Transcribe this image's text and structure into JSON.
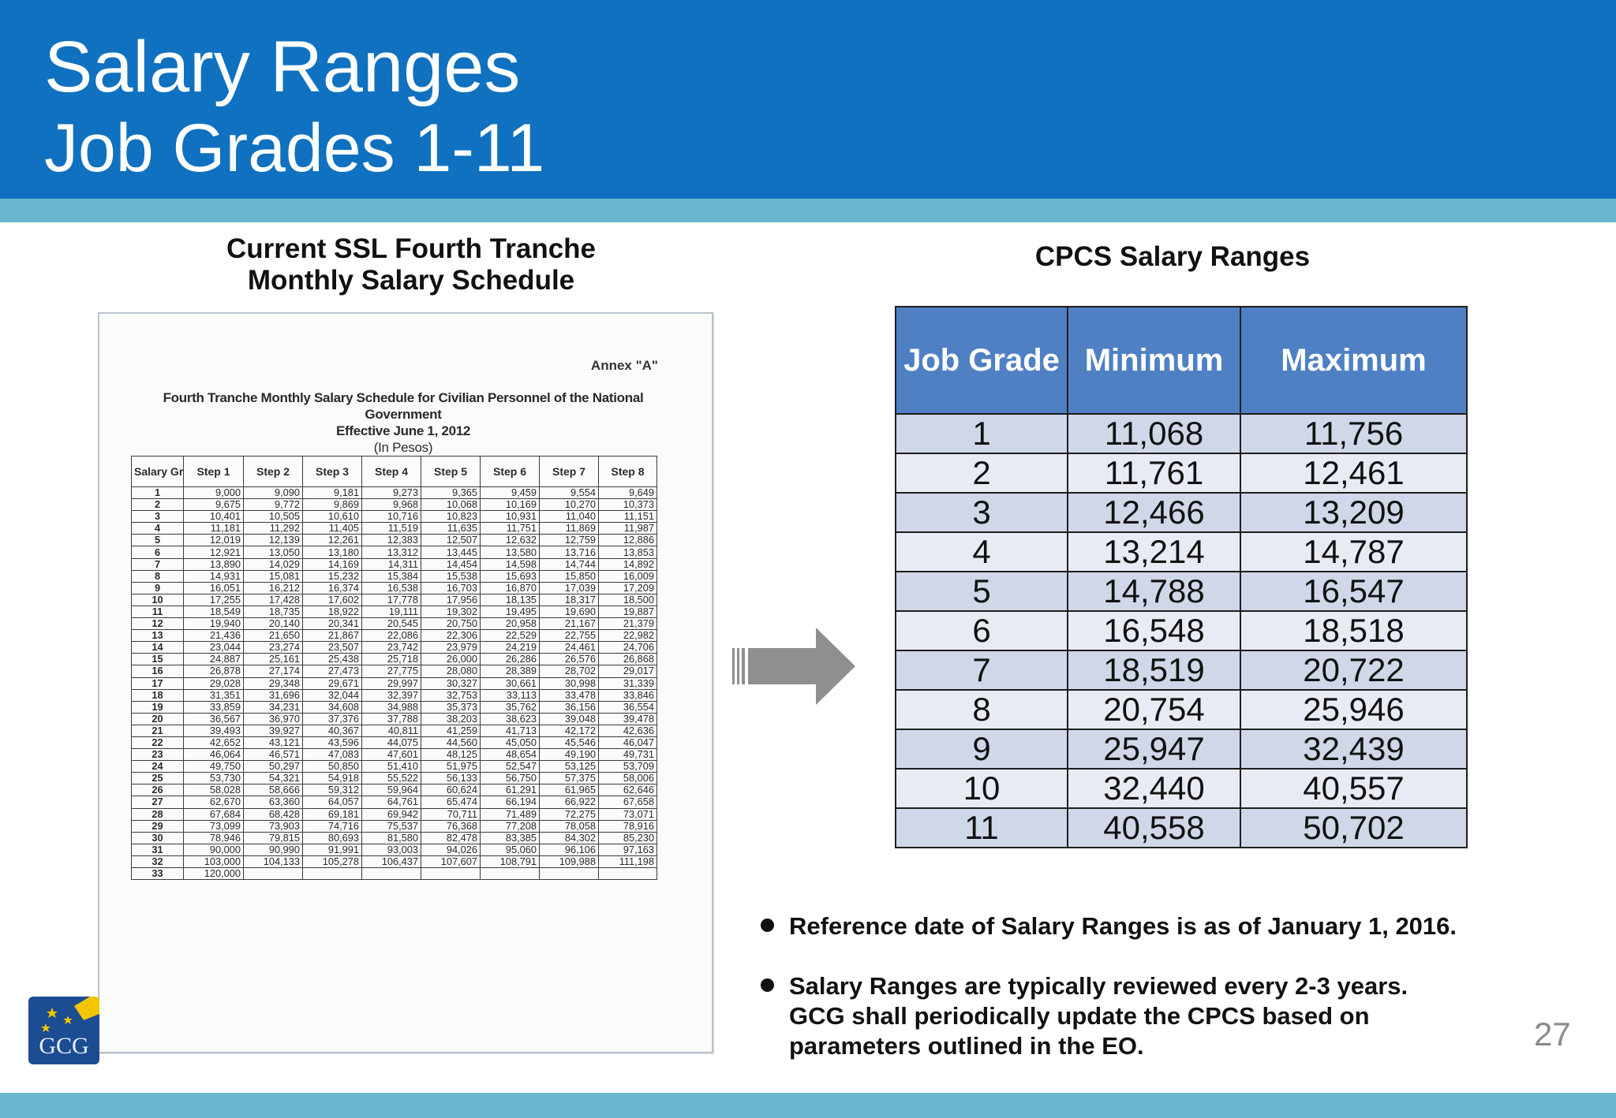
{
  "slide": {
    "title_line1": "Salary Ranges",
    "title_line2": "Job Grades 1-11",
    "page_number": "27",
    "logo_text": "GCG"
  },
  "ssl": {
    "caption_line1": "Current SSL Fourth Tranche",
    "caption_line2": "Monthly Salary Schedule",
    "annex": "Annex \"A\"",
    "heading_line1": "Fourth Tranche Monthly Salary Schedule for Civilian Personnel of the National",
    "heading_line2": "Government",
    "heading_line3": "Effective June 1, 2012",
    "heading_line4": "(In Pesos)",
    "columns": [
      "Salary Grade",
      "Step 1",
      "Step 2",
      "Step 3",
      "Step 4",
      "Step 5",
      "Step 6",
      "Step 7",
      "Step 8"
    ],
    "rows": [
      [
        "1",
        "9,000",
        "9,090",
        "9,181",
        "9,273",
        "9,365",
        "9,459",
        "9,554",
        "9,649"
      ],
      [
        "2",
        "9,675",
        "9,772",
        "9,869",
        "9,968",
        "10,068",
        "10,169",
        "10,270",
        "10,373"
      ],
      [
        "3",
        "10,401",
        "10,505",
        "10,610",
        "10,716",
        "10,823",
        "10,931",
        "11,040",
        "11,151"
      ],
      [
        "4",
        "11,181",
        "11,292",
        "11,405",
        "11,519",
        "11,635",
        "11,751",
        "11,869",
        "11,987"
      ],
      [
        "5",
        "12,019",
        "12,139",
        "12,261",
        "12,383",
        "12,507",
        "12,632",
        "12,759",
        "12,886"
      ],
      [
        "6",
        "12,921",
        "13,050",
        "13,180",
        "13,312",
        "13,445",
        "13,580",
        "13,716",
        "13,853"
      ],
      [
        "7",
        "13,890",
        "14,029",
        "14,169",
        "14,311",
        "14,454",
        "14,598",
        "14,744",
        "14,892"
      ],
      [
        "8",
        "14,931",
        "15,081",
        "15,232",
        "15,384",
        "15,538",
        "15,693",
        "15,850",
        "16,009"
      ],
      [
        "9",
        "16,051",
        "16,212",
        "16,374",
        "16,538",
        "16,703",
        "16,870",
        "17,039",
        "17,209"
      ],
      [
        "10",
        "17,255",
        "17,428",
        "17,602",
        "17,778",
        "17,956",
        "18,135",
        "18,317",
        "18,500"
      ],
      [
        "11",
        "18,549",
        "18,735",
        "18,922",
        "19,111",
        "19,302",
        "19,495",
        "19,690",
        "19,887"
      ],
      [
        "12",
        "19,940",
        "20,140",
        "20,341",
        "20,545",
        "20,750",
        "20,958",
        "21,167",
        "21,379"
      ],
      [
        "13",
        "21,436",
        "21,650",
        "21,867",
        "22,086",
        "22,306",
        "22,529",
        "22,755",
        "22,982"
      ],
      [
        "14",
        "23,044",
        "23,274",
        "23,507",
        "23,742",
        "23,979",
        "24,219",
        "24,461",
        "24,706"
      ],
      [
        "15",
        "24,887",
        "25,161",
        "25,438",
        "25,718",
        "26,000",
        "26,286",
        "26,576",
        "26,868"
      ],
      [
        "16",
        "26,878",
        "27,174",
        "27,473",
        "27,775",
        "28,080",
        "28,389",
        "28,702",
        "29,017"
      ],
      [
        "17",
        "29,028",
        "29,348",
        "29,671",
        "29,997",
        "30,327",
        "30,661",
        "30,998",
        "31,339"
      ],
      [
        "18",
        "31,351",
        "31,696",
        "32,044",
        "32,397",
        "32,753",
        "33,113",
        "33,478",
        "33,846"
      ],
      [
        "19",
        "33,859",
        "34,231",
        "34,608",
        "34,988",
        "35,373",
        "35,762",
        "36,156",
        "36,554"
      ],
      [
        "20",
        "36,567",
        "36,970",
        "37,376",
        "37,788",
        "38,203",
        "38,623",
        "39,048",
        "39,478"
      ],
      [
        "21",
        "39,493",
        "39,927",
        "40,367",
        "40,811",
        "41,259",
        "41,713",
        "42,172",
        "42,636"
      ],
      [
        "22",
        "42,652",
        "43,121",
        "43,596",
        "44,075",
        "44,560",
        "45,050",
        "45,546",
        "46,047"
      ],
      [
        "23",
        "46,064",
        "46,571",
        "47,083",
        "47,601",
        "48,125",
        "48,654",
        "49,190",
        "49,731"
      ],
      [
        "24",
        "49,750",
        "50,297",
        "50,850",
        "51,410",
        "51,975",
        "52,547",
        "53,125",
        "53,709"
      ],
      [
        "25",
        "53,730",
        "54,321",
        "54,918",
        "55,522",
        "56,133",
        "56,750",
        "57,375",
        "58,006"
      ],
      [
        "26",
        "58,028",
        "58,666",
        "59,312",
        "59,964",
        "60,624",
        "61,291",
        "61,965",
        "62,646"
      ],
      [
        "27",
        "62,670",
        "63,360",
        "64,057",
        "64,761",
        "65,474",
        "66,194",
        "66,922",
        "67,658"
      ],
      [
        "28",
        "67,684",
        "68,428",
        "69,181",
        "69,942",
        "70,711",
        "71,489",
        "72,275",
        "73,071"
      ],
      [
        "29",
        "73,099",
        "73,903",
        "74,716",
        "75,537",
        "76,368",
        "77,208",
        "78,058",
        "78,916"
      ],
      [
        "30",
        "78,946",
        "79,815",
        "80,693",
        "81,580",
        "82,478",
        "83,385",
        "84,302",
        "85,230"
      ],
      [
        "31",
        "90,000",
        "90,990",
        "91,991",
        "93,003",
        "94,026",
        "95,060",
        "96,106",
        "97,163"
      ],
      [
        "32",
        "103,000",
        "104,133",
        "105,278",
        "106,437",
        "107,607",
        "108,791",
        "109,988",
        "111,198"
      ],
      [
        "33",
        "120,000",
        "",
        "",
        "",
        "",
        "",
        "",
        ""
      ]
    ]
  },
  "cpcs": {
    "title": "CPCS Salary Ranges",
    "headers": [
      "Job Grade",
      "Minimum",
      "Maximum"
    ],
    "rows": [
      [
        "1",
        "11,068",
        "11,756"
      ],
      [
        "2",
        "11,761",
        "12,461"
      ],
      [
        "3",
        "12,466",
        "13,209"
      ],
      [
        "4",
        "13,214",
        "14,787"
      ],
      [
        "5",
        "14,788",
        "16,547"
      ],
      [
        "6",
        "16,548",
        "18,518"
      ],
      [
        "7",
        "18,519",
        "20,722"
      ],
      [
        "8",
        "20,754",
        "25,946"
      ],
      [
        "9",
        "25,947",
        "32,439"
      ],
      [
        "10",
        "32,440",
        "40,557"
      ],
      [
        "11",
        "40,558",
        "50,702"
      ]
    ]
  },
  "notes": {
    "bullet1": "Reference date of Salary Ranges is as of January 1, 2016.",
    "bullet2_line1": "Salary Ranges are typically reviewed every 2-3 years.",
    "bullet2_line2": "GCG shall periodically update the CPCS based on",
    "bullet2_line3": "parameters outlined in the EO."
  },
  "colors": {
    "header_blue": "#0f71bf",
    "accent_stripe": "#6ab6cf",
    "table_header": "#4f80c4",
    "table_row_dark": "#cfd7e8",
    "table_row_light": "#e8ebf4"
  }
}
